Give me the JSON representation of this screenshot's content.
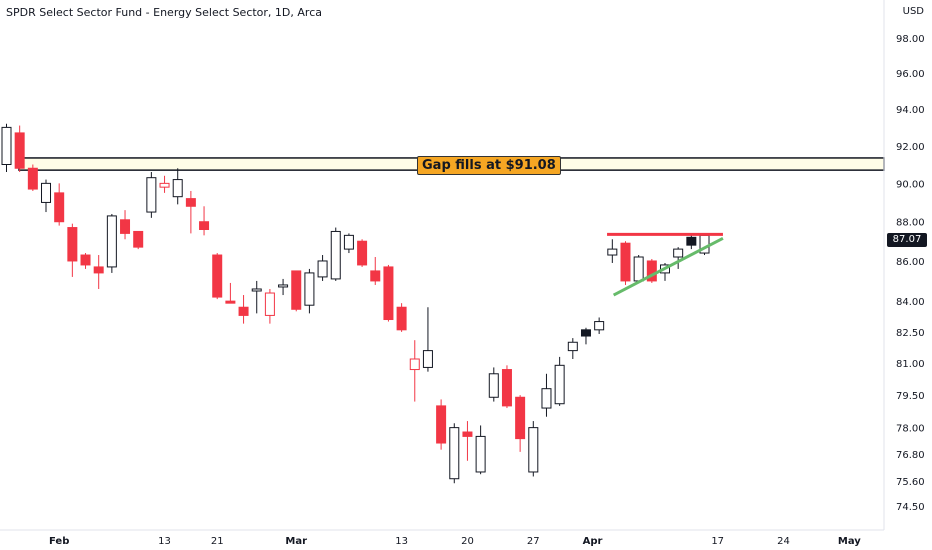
{
  "header": {
    "title": "SPDR Select Sector Fund - Energy Select Sector, 1D, Arca",
    "currency": "USD"
  },
  "annotation": {
    "text": "Gap fills at $91.08"
  },
  "colors": {
    "up": "#ffffff",
    "down": "#f23645",
    "outline": "#131722",
    "resistance": "#f23645",
    "support": "#66bb6a",
    "zone_fill": "#fffde7",
    "annotation_bg": "#f5a623"
  },
  "chart_data": {
    "type": "candlestick",
    "title": "SPDR Select Sector Fund - Energy Select Sector, 1D, Arca",
    "y_scale": "log",
    "ylim": [
      74.0,
      100.5
    ],
    "y_ticks": [
      98.0,
      96.0,
      94.0,
      92.0,
      90.0,
      88.0,
      86.0,
      84.0,
      82.5,
      81.0,
      79.5,
      78.0,
      76.8,
      75.6,
      74.5
    ],
    "x_ticks": [
      {
        "label": "Feb",
        "index": 4
      },
      {
        "label": "13",
        "index": 12
      },
      {
        "label": "21",
        "index": 16
      },
      {
        "label": "Mar",
        "index": 22
      },
      {
        "label": "13",
        "index": 30
      },
      {
        "label": "20",
        "index": 35
      },
      {
        "label": "27",
        "index": 40
      },
      {
        "label": "Apr",
        "index": 44.5
      },
      {
        "label": "17",
        "index": 54
      },
      {
        "label": "24",
        "index": 59
      },
      {
        "label": "May",
        "index": 64
      }
    ],
    "last_price": "87.07",
    "candles": [
      {
        "o": 91.0,
        "h": 93.2,
        "l": 90.6,
        "c": 93.0,
        "fill": "up"
      },
      {
        "o": 92.7,
        "h": 93.1,
        "l": 90.6,
        "c": 90.8,
        "fill": "down"
      },
      {
        "o": 90.8,
        "h": 91.0,
        "l": 89.6,
        "c": 89.7,
        "fill": "down"
      },
      {
        "o": 89.0,
        "h": 90.2,
        "l": 88.5,
        "c": 90.0,
        "fill": "up"
      },
      {
        "o": 89.5,
        "h": 90.0,
        "l": 87.8,
        "c": 88.0,
        "fill": "down"
      },
      {
        "o": 87.7,
        "h": 87.9,
        "l": 85.2,
        "c": 86.0,
        "fill": "down"
      },
      {
        "o": 86.3,
        "h": 86.4,
        "l": 85.6,
        "c": 85.8,
        "fill": "down"
      },
      {
        "o": 85.7,
        "h": 86.3,
        "l": 84.6,
        "c": 85.4,
        "fill": "down"
      },
      {
        "o": 85.7,
        "h": 88.4,
        "l": 85.4,
        "c": 88.3,
        "fill": "up"
      },
      {
        "o": 88.1,
        "h": 88.6,
        "l": 87.1,
        "c": 87.4,
        "fill": "down"
      },
      {
        "o": 87.5,
        "h": 87.5,
        "l": 86.6,
        "c": 86.7,
        "fill": "down"
      },
      {
        "o": 88.5,
        "h": 90.6,
        "l": 88.2,
        "c": 90.3,
        "fill": "up"
      },
      {
        "o": 89.8,
        "h": 90.4,
        "l": 89.5,
        "c": 90.0,
        "fill": "down_hollow"
      },
      {
        "o": 89.3,
        "h": 90.8,
        "l": 88.9,
        "c": 90.2,
        "fill": "up"
      },
      {
        "o": 89.2,
        "h": 89.6,
        "l": 87.4,
        "c": 88.8,
        "fill": "down"
      },
      {
        "o": 88.0,
        "h": 88.8,
        "l": 87.3,
        "c": 87.6,
        "fill": "down"
      },
      {
        "o": 86.3,
        "h": 86.4,
        "l": 84.1,
        "c": 84.2,
        "fill": "down"
      },
      {
        "o": 84.0,
        "h": 84.9,
        "l": 83.9,
        "c": 83.9,
        "fill": "down"
      },
      {
        "o": 83.7,
        "h": 84.3,
        "l": 82.9,
        "c": 83.3,
        "fill": "down"
      },
      {
        "o": 84.5,
        "h": 85.0,
        "l": 83.4,
        "c": 84.6,
        "fill": "up"
      },
      {
        "o": 83.3,
        "h": 84.6,
        "l": 82.9,
        "c": 84.4,
        "fill": "down_hollow"
      },
      {
        "o": 84.7,
        "h": 85.1,
        "l": 84.3,
        "c": 84.8,
        "fill": "up"
      },
      {
        "o": 85.5,
        "h": 85.5,
        "l": 83.5,
        "c": 83.6,
        "fill": "down"
      },
      {
        "o": 83.8,
        "h": 85.6,
        "l": 83.4,
        "c": 85.4,
        "fill": "up"
      },
      {
        "o": 85.2,
        "h": 86.3,
        "l": 85.0,
        "c": 86.0,
        "fill": "up"
      },
      {
        "o": 85.1,
        "h": 87.7,
        "l": 85.0,
        "c": 87.5,
        "fill": "up"
      },
      {
        "o": 86.6,
        "h": 87.4,
        "l": 86.4,
        "c": 87.3,
        "fill": "up"
      },
      {
        "o": 87.0,
        "h": 87.1,
        "l": 85.7,
        "c": 85.8,
        "fill": "down"
      },
      {
        "o": 85.5,
        "h": 86.2,
        "l": 84.8,
        "c": 85.0,
        "fill": "down"
      },
      {
        "o": 85.7,
        "h": 85.8,
        "l": 83.0,
        "c": 83.1,
        "fill": "down"
      },
      {
        "o": 83.7,
        "h": 83.9,
        "l": 82.5,
        "c": 82.6,
        "fill": "down"
      },
      {
        "o": 81.2,
        "h": 82.1,
        "l": 79.2,
        "c": 80.7,
        "fill": "down_hollow"
      },
      {
        "o": 80.8,
        "h": 83.7,
        "l": 80.6,
        "c": 81.6,
        "fill": "up"
      },
      {
        "o": 79.0,
        "h": 79.3,
        "l": 77.0,
        "c": 77.3,
        "fill": "down"
      },
      {
        "o": 75.7,
        "h": 78.2,
        "l": 75.5,
        "c": 78.0,
        "fill": "up"
      },
      {
        "o": 77.8,
        "h": 78.3,
        "l": 76.5,
        "c": 77.6,
        "fill": "down"
      },
      {
        "o": 76.0,
        "h": 78.1,
        "l": 75.9,
        "c": 77.6,
        "fill": "up"
      },
      {
        "o": 79.4,
        "h": 80.8,
        "l": 79.2,
        "c": 80.5,
        "fill": "up"
      },
      {
        "o": 80.7,
        "h": 80.9,
        "l": 78.9,
        "c": 79.0,
        "fill": "down"
      },
      {
        "o": 79.4,
        "h": 79.5,
        "l": 76.9,
        "c": 77.5,
        "fill": "down"
      },
      {
        "o": 76.0,
        "h": 78.3,
        "l": 75.8,
        "c": 78.0,
        "fill": "up"
      },
      {
        "o": 78.9,
        "h": 80.5,
        "l": 78.5,
        "c": 79.8,
        "fill": "up"
      },
      {
        "o": 79.1,
        "h": 81.3,
        "l": 79.0,
        "c": 80.9,
        "fill": "up"
      },
      {
        "o": 81.6,
        "h": 82.2,
        "l": 81.2,
        "c": 82.0,
        "fill": "up"
      },
      {
        "o": 82.3,
        "h": 82.7,
        "l": 81.9,
        "c": 82.6,
        "fill": "dark"
      },
      {
        "o": 82.6,
        "h": 83.2,
        "l": 82.4,
        "c": 83.0,
        "fill": "up"
      },
      {
        "o": 86.3,
        "h": 87.1,
        "l": 85.9,
        "c": 86.6,
        "fill": "up"
      },
      {
        "o": 86.9,
        "h": 87.0,
        "l": 84.8,
        "c": 85.0,
        "fill": "down"
      },
      {
        "o": 85.0,
        "h": 86.3,
        "l": 84.9,
        "c": 86.2,
        "fill": "up"
      },
      {
        "o": 86.0,
        "h": 86.1,
        "l": 84.9,
        "c": 85.0,
        "fill": "down"
      },
      {
        "o": 85.4,
        "h": 85.9,
        "l": 85.0,
        "c": 85.8,
        "fill": "up"
      },
      {
        "o": 86.2,
        "h": 86.7,
        "l": 85.6,
        "c": 86.6,
        "fill": "up"
      },
      {
        "o": 86.8,
        "h": 87.3,
        "l": 86.6,
        "c": 87.2,
        "fill": "dark"
      },
      {
        "o": 86.4,
        "h": 87.4,
        "l": 86.3,
        "c": 87.3,
        "fill": "up"
      }
    ],
    "zone": {
      "low": 90.7,
      "high": 91.35,
      "from_index": 0,
      "to_index": 68
    },
    "resistance_line": {
      "from_index": 45.6,
      "to_index": 54.4,
      "y_from": 87.35,
      "y_to": 87.35
    },
    "support_line": {
      "from_index": 46.1,
      "to_index": 54.4,
      "y_from": 84.3,
      "y_to": 87.15
    }
  }
}
